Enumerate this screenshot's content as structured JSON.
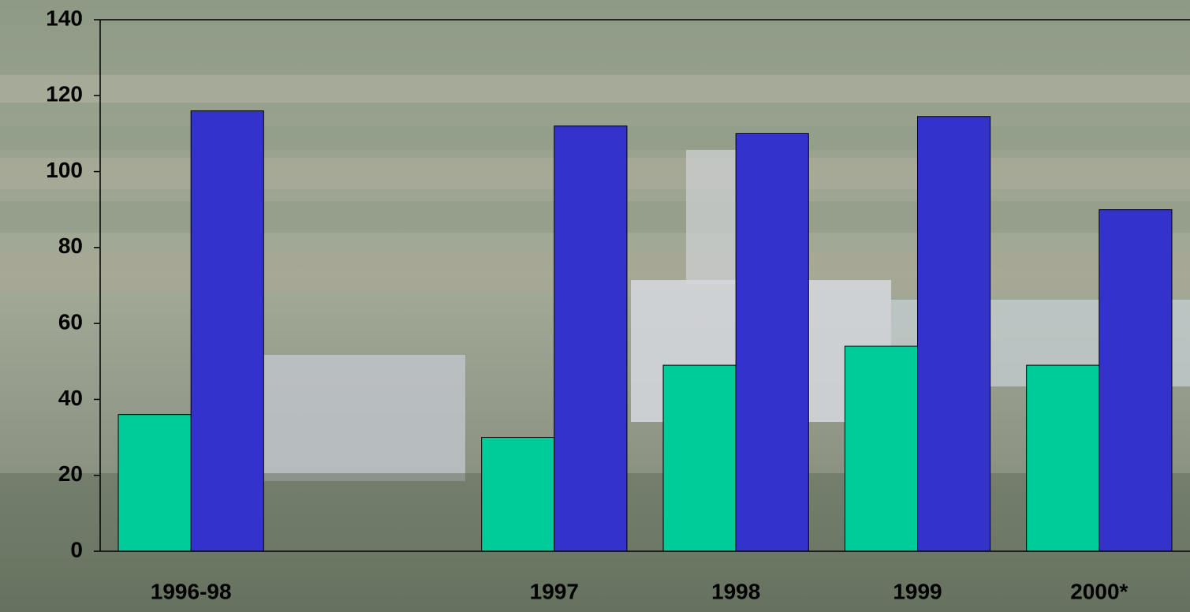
{
  "chart_data": {
    "type": "bar",
    "categories": [
      "1996-98",
      null,
      "1997",
      "1998",
      "1999",
      "2000*"
    ],
    "series": [
      {
        "color": "#00cc99",
        "values": [
          36,
          null,
          30,
          49,
          54,
          49
        ]
      },
      {
        "color": "#3333cc",
        "values": [
          116,
          null,
          112,
          110,
          114.5,
          90
        ]
      }
    ],
    "ylim": [
      0,
      140
    ],
    "yticks": [
      0,
      20,
      40,
      60,
      80,
      100,
      120,
      140
    ]
  }
}
